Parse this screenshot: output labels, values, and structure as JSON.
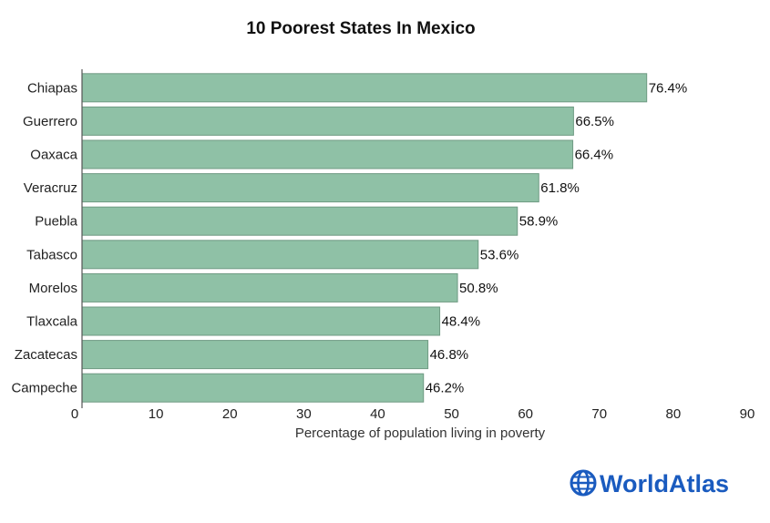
{
  "brand": {
    "name": "WorldAtlas",
    "color": "#1a5bbf",
    "icon": "globe-icon"
  },
  "chart_data": {
    "type": "bar",
    "orientation": "horizontal",
    "title": "10 Poorest States In Mexico",
    "xlabel": "Percentage of population living in poverty",
    "ylabel": "",
    "xlim": [
      0,
      90
    ],
    "ticks": [
      "0",
      "10",
      "20",
      "30",
      "40",
      "50",
      "60",
      "70",
      "80",
      "90"
    ],
    "categories": [
      "Chiapas",
      "Guerrero",
      "Oaxaca",
      "Veracruz",
      "Puebla",
      "Tabasco",
      "Morelos",
      "Tlaxcala",
      "Zacatecas",
      "Campeche"
    ],
    "values": [
      76.4,
      66.5,
      66.4,
      61.8,
      58.9,
      53.6,
      50.8,
      48.4,
      46.8,
      46.2
    ],
    "labels": [
      "76.4%",
      "66.5%",
      "66.4%",
      "61.8%",
      "58.9%",
      "53.6%",
      "50.8%",
      "48.4%",
      "46.8%",
      "46.2%"
    ],
    "bar_color": "#8fc1a6",
    "bar_edge_color": "#6f9a83",
    "grid": false,
    "legend": "none"
  }
}
